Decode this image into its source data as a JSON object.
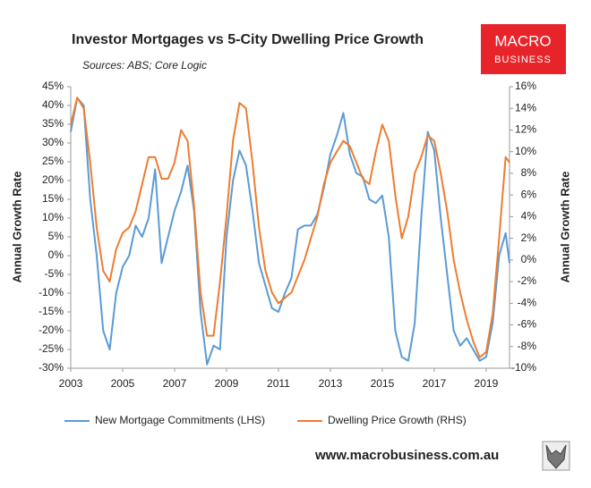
{
  "chart_data": {
    "type": "line",
    "title": "Investor Mortgages vs 5-City Dwelling Price Growth",
    "subtitle": "Sources: ABS; Core Logic",
    "logo": [
      "MACRO",
      "BUSINESS"
    ],
    "website": "www.macrobusiness.com.au",
    "ylabel": "Annual Growth Rate",
    "y2label": "Annual Growth Rate",
    "x": [
      2003,
      2003.25,
      2003.5,
      2003.75,
      2004,
      2004.25,
      2004.5,
      2004.75,
      2005,
      2005.25,
      2005.5,
      2005.75,
      2006,
      2006.25,
      2006.5,
      2006.75,
      2007,
      2007.25,
      2007.5,
      2007.75,
      2008,
      2008.25,
      2008.5,
      2008.75,
      2009,
      2009.25,
      2009.5,
      2009.75,
      2010,
      2010.25,
      2010.5,
      2010.75,
      2011,
      2011.25,
      2011.5,
      2011.75,
      2012,
      2012.25,
      2012.5,
      2012.75,
      2013,
      2013.25,
      2013.5,
      2013.75,
      2014,
      2014.25,
      2014.5,
      2014.75,
      2015,
      2015.25,
      2015.5,
      2015.75,
      2016,
      2016.25,
      2016.5,
      2016.75,
      2017,
      2017.25,
      2017.5,
      2017.75,
      2018,
      2018.25,
      2018.5,
      2018.75,
      2019,
      2019.25,
      2019.5,
      2019.75,
      2019.9
    ],
    "series": [
      {
        "name": "New Mortgage Commitments (LHS)",
        "color": "#5b9bd5",
        "axis": "y",
        "values": [
          33,
          42,
          40,
          15,
          0,
          -20,
          -25,
          -10,
          -3,
          0,
          8,
          5,
          10,
          23,
          -2,
          5,
          12,
          17,
          24,
          12,
          -15,
          -29,
          -24,
          -25,
          5,
          20,
          28,
          24,
          12,
          -2,
          -8,
          -14,
          -15,
          -10,
          -6,
          7,
          8,
          8,
          11,
          18,
          27,
          32,
          38,
          27,
          22,
          21,
          15,
          14,
          16,
          5,
          -20,
          -27,
          -28,
          -18,
          10,
          33,
          28,
          10,
          -5,
          -20,
          -24,
          -22,
          -25,
          -28,
          -27,
          -18,
          0,
          6,
          -2
        ]
      },
      {
        "name": "Dwelling Price Growth (RHS)",
        "color": "#ed7d31",
        "axis": "y2",
        "values": [
          12.5,
          15,
          14,
          9,
          3,
          -1,
          -2,
          1,
          2.5,
          3,
          4.5,
          7,
          9.5,
          9.5,
          7.5,
          7.5,
          9,
          12,
          11,
          5,
          -3,
          -7,
          -7,
          -2,
          4,
          11,
          14.5,
          14,
          9,
          3,
          -1,
          -3,
          -4,
          -3.5,
          -3,
          -1.5,
          0,
          2,
          4,
          7,
          9,
          10,
          11,
          10.5,
          9,
          7.5,
          7,
          10,
          12.5,
          11,
          6,
          2,
          4,
          8,
          9.5,
          11.5,
          11,
          8,
          4.5,
          0,
          -3,
          -5.5,
          -7.5,
          -9,
          -8.5,
          -5,
          2,
          9.5,
          9
        ]
      }
    ],
    "xlim": [
      2003,
      2019.9
    ],
    "xticks": [
      2003,
      2005,
      2007,
      2009,
      2011,
      2013,
      2015,
      2017,
      2019
    ],
    "ylim": [
      -30,
      45
    ],
    "yticks": [
      {
        "value": 45,
        "label": "45%"
      },
      {
        "value": 40,
        "label": "40%"
      },
      {
        "value": 35,
        "label": "35%"
      },
      {
        "value": 30,
        "label": "30%"
      },
      {
        "value": 25,
        "label": "25%"
      },
      {
        "value": 20,
        "label": "20%"
      },
      {
        "value": 15,
        "label": "15%"
      },
      {
        "value": 10,
        "label": "10%"
      },
      {
        "value": 5,
        "label": "5%"
      },
      {
        "value": 0,
        "label": "0%"
      },
      {
        "value": -5,
        "label": "-5%"
      },
      {
        "value": -10,
        "label": "-10%"
      },
      {
        "value": -15,
        "label": "-15%"
      },
      {
        "value": -20,
        "label": "-20%"
      },
      {
        "value": -25,
        "label": "-25%"
      },
      {
        "value": -30,
        "label": "-30%"
      }
    ],
    "y2lim": [
      -10,
      16
    ],
    "y2ticks": [
      {
        "value": 16,
        "label": "16%"
      },
      {
        "value": 14,
        "label": "14%"
      },
      {
        "value": 12,
        "label": "12%"
      },
      {
        "value": 10,
        "label": "10%"
      },
      {
        "value": 8,
        "label": "8%"
      },
      {
        "value": 6,
        "label": "6%"
      },
      {
        "value": 4,
        "label": "4%"
      },
      {
        "value": 2,
        "label": "2%"
      },
      {
        "value": 0,
        "label": "0%"
      },
      {
        "value": -2,
        "label": "-2%"
      },
      {
        "value": -4,
        "label": "-4%"
      },
      {
        "value": -6,
        "label": "-6%"
      },
      {
        "value": -8,
        "label": "-8%"
      },
      {
        "value": -10,
        "label": "-10%"
      }
    ],
    "grid": false,
    "legend": "bottom"
  }
}
